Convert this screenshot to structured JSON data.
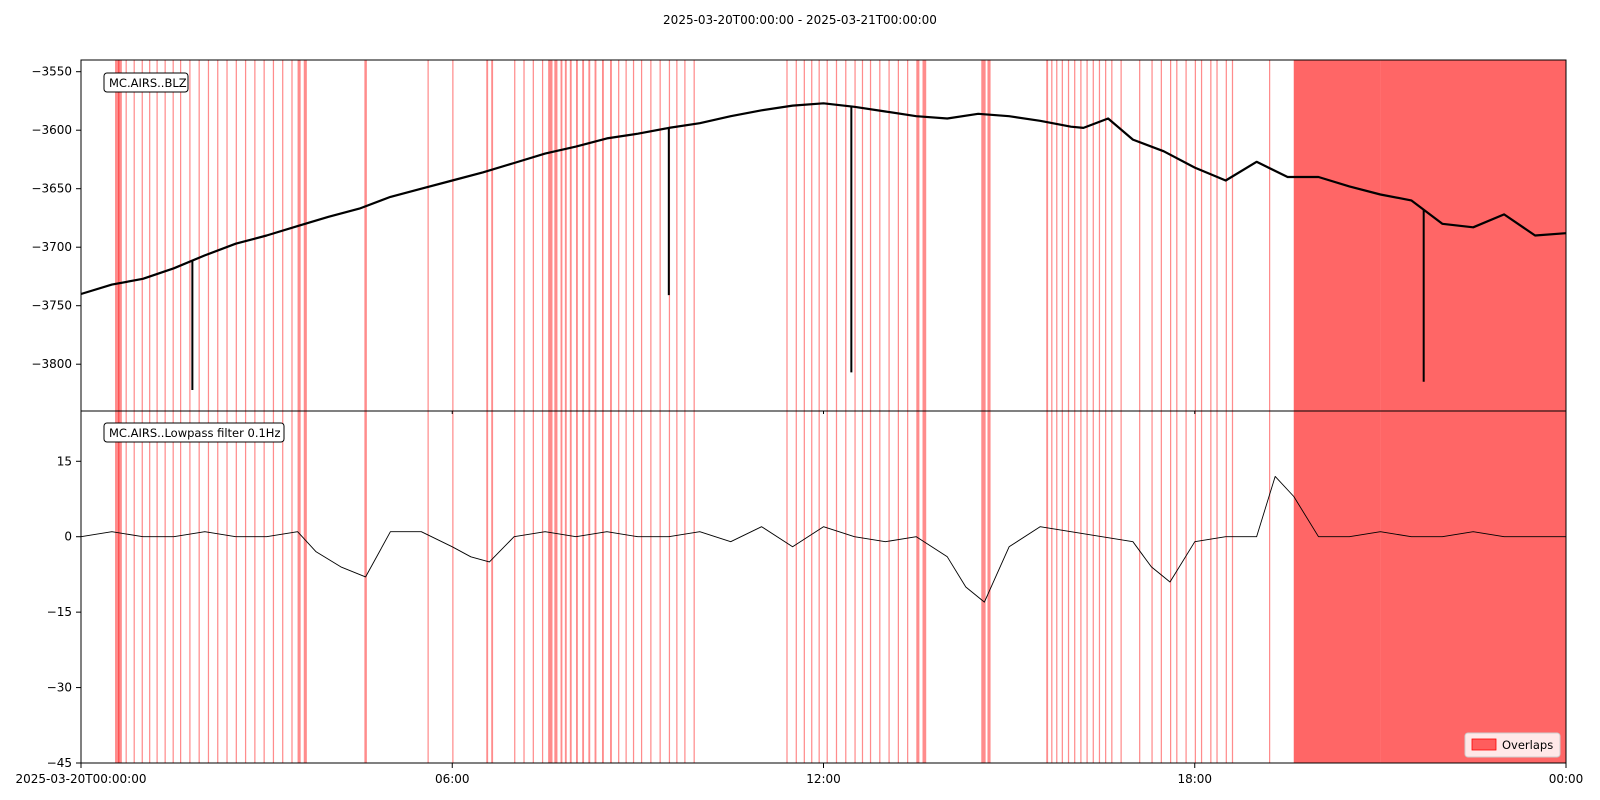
{
  "chart_data": [
    {
      "type": "line",
      "title": "2025-03-20T00:00:00  -  2025-03-21T00:00:00",
      "trace_label": "MC.AIRS..BLZ",
      "xlabel": "",
      "ylabel": "",
      "x_ticks": [
        "2025-03-20T00:00:00",
        "06:00",
        "12:00",
        "18:00",
        "00:00"
      ],
      "x_tick_hours": [
        0,
        6,
        12,
        18,
        24
      ],
      "xlim_hours": [
        0,
        24
      ],
      "ylim": [
        -3840,
        -3540
      ],
      "y_ticks": [
        -3550,
        -3600,
        -3650,
        -3700,
        -3750,
        -3800
      ],
      "series": [
        {
          "color": "#000000",
          "x_hours": [
            0,
            0.5,
            1,
            1.5,
            2,
            2.5,
            3,
            3.5,
            4,
            4.5,
            5,
            5.5,
            6,
            6.5,
            7,
            7.5,
            8,
            8.5,
            9,
            9.5,
            10,
            10.5,
            11,
            11.5,
            12,
            12.5,
            13,
            13.5,
            14,
            14.5,
            15,
            15.5,
            16,
            16.2,
            16.6,
            17,
            17.5,
            18,
            18.5,
            19,
            19.5,
            20,
            20.5,
            21,
            21.5,
            22,
            22.5,
            23,
            23.5,
            24
          ],
          "values": [
            -3740,
            -3732,
            -3727,
            -3718,
            -3707,
            -3697,
            -3690,
            -3682,
            -3674,
            -3667,
            -3657,
            -3650,
            -3643,
            -3636,
            -3628,
            -3620,
            -3614,
            -3607,
            -3603,
            -3598,
            -3594,
            -3588,
            -3583,
            -3579,
            -3577,
            -3580,
            -3584,
            -3588,
            -3590,
            -3586,
            -3588,
            -3592,
            -3597,
            -3598,
            -3590,
            -3608,
            -3618,
            -3632,
            -3643,
            -3627,
            -3640,
            -3640,
            -3648,
            -3655,
            -3660,
            -3680,
            -3683,
            -3672,
            -3690,
            -3688
          ]
        }
      ],
      "spikes": [
        {
          "x_hour": 1.8,
          "value": -3822
        },
        {
          "x_hour": 9.5,
          "value": -3741
        },
        {
          "x_hour": 12.45,
          "value": -3807
        },
        {
          "x_hour": 21.7,
          "value": -3815
        }
      ],
      "grid": false
    },
    {
      "type": "line",
      "trace_label": "MC.AIRS..Lowpass filter 0.1Hz",
      "xlabel": "",
      "ylabel": "",
      "x_ticks": [
        "2025-03-20T00:00:00",
        "06:00",
        "12:00",
        "18:00",
        "00:00"
      ],
      "x_tick_hours": [
        0,
        6,
        12,
        18,
        24
      ],
      "xlim_hours": [
        0,
        24
      ],
      "ylim": [
        -45,
        25
      ],
      "y_ticks": [
        15,
        0,
        -15,
        -30,
        -45
      ],
      "series": [
        {
          "color": "#000000",
          "x_hours": [
            0,
            0.5,
            1,
            1.5,
            2,
            2.5,
            3,
            3.5,
            3.8,
            4.2,
            4.6,
            5,
            5.5,
            6,
            6.3,
            6.6,
            7,
            7.5,
            8,
            8.5,
            9,
            9.5,
            10,
            10.5,
            11,
            11.5,
            12,
            12.5,
            13,
            13.5,
            14,
            14.3,
            14.6,
            15,
            15.5,
            16,
            16.5,
            17,
            17.3,
            17.6,
            18,
            18.5,
            19,
            19.3,
            19.6,
            20,
            20.5,
            21,
            21.5,
            22,
            22.5,
            23,
            23.5,
            24
          ],
          "values": [
            0,
            1,
            0,
            0,
            1,
            0,
            0,
            1,
            -3,
            -6,
            -8,
            1,
            1,
            -2,
            -4,
            -5,
            0,
            1,
            0,
            1,
            0,
            0,
            1,
            -1,
            2,
            -2,
            2,
            0,
            -1,
            0,
            -4,
            -10,
            -13,
            -2,
            2,
            1,
            0,
            -1,
            -6,
            -9,
            -1,
            0,
            0,
            12,
            8,
            0,
            0,
            1,
            0,
            0,
            1,
            0,
            0,
            0
          ]
        }
      ],
      "grid": false
    }
  ],
  "overlap_bands_hours": [
    [
      0.55,
      0.62
    ],
    [
      0.6,
      0.66
    ],
    [
      0.72,
      0.74
    ],
    [
      0.85,
      0.87
    ],
    [
      0.98,
      1.0
    ],
    [
      1.1,
      1.12
    ],
    [
      1.22,
      1.24
    ],
    [
      1.35,
      1.37
    ],
    [
      1.48,
      1.5
    ],
    [
      1.6,
      1.62
    ],
    [
      1.75,
      1.77
    ],
    [
      1.9,
      1.92
    ],
    [
      2.05,
      2.07
    ],
    [
      2.2,
      2.22
    ],
    [
      2.35,
      2.37
    ],
    [
      2.5,
      2.52
    ],
    [
      2.65,
      2.67
    ],
    [
      2.8,
      2.82
    ],
    [
      2.95,
      2.97
    ],
    [
      3.1,
      3.12
    ],
    [
      3.25,
      3.27
    ],
    [
      3.4,
      3.42
    ],
    [
      3.5,
      3.55
    ],
    [
      3.6,
      3.65
    ],
    [
      4.58,
      4.62
    ],
    [
      5.6,
      5.62
    ],
    [
      6.0,
      6.02
    ],
    [
      6.55,
      6.58
    ],
    [
      6.63,
      6.66
    ],
    [
      7.0,
      7.02
    ],
    [
      7.15,
      7.17
    ],
    [
      7.3,
      7.32
    ],
    [
      7.45,
      7.47
    ],
    [
      7.55,
      7.62
    ],
    [
      7.65,
      7.7
    ],
    [
      7.75,
      7.78
    ],
    [
      7.82,
      7.85
    ],
    [
      7.9,
      7.93
    ],
    [
      8.0,
      8.03
    ],
    [
      8.1,
      8.13
    ],
    [
      8.2,
      8.23
    ],
    [
      8.3,
      8.33
    ],
    [
      8.42,
      8.45
    ],
    [
      8.55,
      8.58
    ],
    [
      8.68,
      8.7
    ],
    [
      8.8,
      8.82
    ],
    [
      8.92,
      8.94
    ],
    [
      9.05,
      9.07
    ],
    [
      9.2,
      9.22
    ],
    [
      9.35,
      9.37
    ],
    [
      9.5,
      9.52
    ],
    [
      9.62,
      9.64
    ],
    [
      9.75,
      9.77
    ],
    [
      9.9,
      9.92
    ],
    [
      11.4,
      11.42
    ],
    [
      11.55,
      11.57
    ],
    [
      11.68,
      11.7
    ],
    [
      11.8,
      11.82
    ],
    [
      11.92,
      11.94
    ],
    [
      12.05,
      12.07
    ],
    [
      12.2,
      12.22
    ],
    [
      12.35,
      12.37
    ],
    [
      12.5,
      12.52
    ],
    [
      12.62,
      12.64
    ],
    [
      12.75,
      12.77
    ],
    [
      12.9,
      12.92
    ],
    [
      13.05,
      13.07
    ],
    [
      13.2,
      13.22
    ],
    [
      13.35,
      13.37
    ],
    [
      13.5,
      13.55
    ],
    [
      13.6,
      13.66
    ],
    [
      14.55,
      14.62
    ],
    [
      14.65,
      14.7
    ],
    [
      15.6,
      15.63
    ],
    [
      15.68,
      15.7
    ],
    [
      15.76,
      15.78
    ],
    [
      15.85,
      15.87
    ],
    [
      15.95,
      15.97
    ],
    [
      16.05,
      16.07
    ],
    [
      16.15,
      16.17
    ],
    [
      16.25,
      16.27
    ],
    [
      16.35,
      16.37
    ],
    [
      16.45,
      16.47
    ],
    [
      16.55,
      16.57
    ],
    [
      16.65,
      16.67
    ],
    [
      16.8,
      16.82
    ],
    [
      17.1,
      17.12
    ],
    [
      17.3,
      17.32
    ],
    [
      17.45,
      17.47
    ],
    [
      17.6,
      17.62
    ],
    [
      17.7,
      17.72
    ],
    [
      17.85,
      17.87
    ],
    [
      18.0,
      18.02
    ],
    [
      18.1,
      18.12
    ],
    [
      18.25,
      18.27
    ],
    [
      18.35,
      18.37
    ],
    [
      18.5,
      18.52
    ],
    [
      18.6,
      18.62
    ],
    [
      19.2,
      19.22
    ],
    [
      19.6,
      21.0
    ],
    [
      21.0,
      24.0
    ]
  ],
  "legend": {
    "label": "Overlaps",
    "color": "#ff0000",
    "position": "lower-right"
  }
}
